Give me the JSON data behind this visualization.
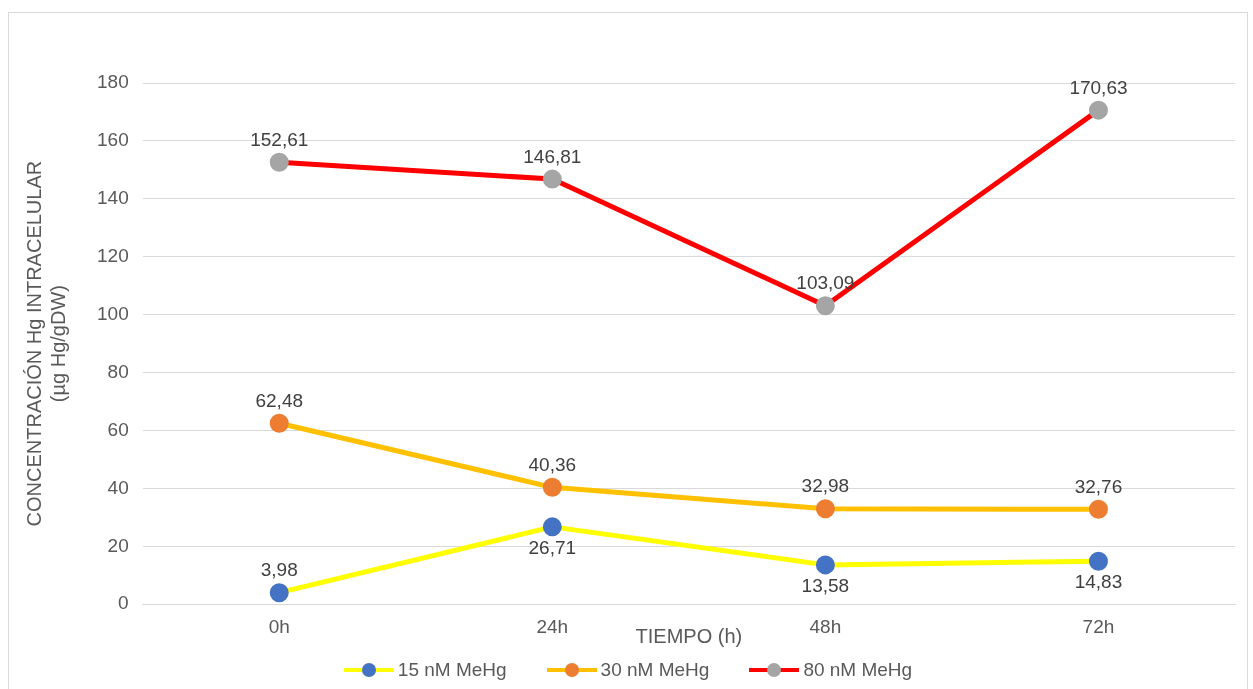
{
  "chart_data": {
    "type": "line",
    "xlabel": "TIEMPO (h)",
    "ylabel": "CONCENTRACIÓN Hg INTRACELULAR\n(µg Hg/gDW)",
    "categories": [
      "0h",
      "24h",
      "48h",
      "72h"
    ],
    "series": [
      {
        "name": "15 nM MeHg",
        "color": "#ffff00",
        "colors": [
          "#4472c4",
          "#4472c4",
          "#4472c4",
          "#4472c4"
        ],
        "values": [
          3.98,
          26.71,
          13.58,
          14.83
        ],
        "value_labels": [
          "3,98",
          "26,71",
          "13,58",
          "14,83"
        ]
      },
      {
        "name": "30 nM MeHg",
        "color": "#ffc000",
        "colors": [
          "#ed7d31",
          "#ed7d31",
          "#ed7d31",
          "#ed7d31"
        ],
        "values": [
          62.48,
          40.36,
          32.98,
          32.76
        ],
        "value_labels": [
          "62,48",
          "40,36",
          "32,98",
          "32,76"
        ]
      },
      {
        "name": "80 nM MeHg",
        "color": "#ff0000",
        "colors": [
          "#a5a5a5",
          "#a5a5a5",
          "#a5a5a5",
          "#a5a5a5"
        ],
        "values": [
          152.61,
          146.81,
          103.09,
          170.63
        ],
        "value_labels": [
          "152,61",
          "146,81",
          "103,09",
          "170,63"
        ]
      }
    ],
    "ylim": [
      0,
      180
    ],
    "yticks": [
      0,
      20,
      40,
      60,
      80,
      100,
      120,
      140,
      160,
      180
    ],
    "grid": "y",
    "legend": "bottom",
    "marker": "circle",
    "line_style": "solid"
  }
}
